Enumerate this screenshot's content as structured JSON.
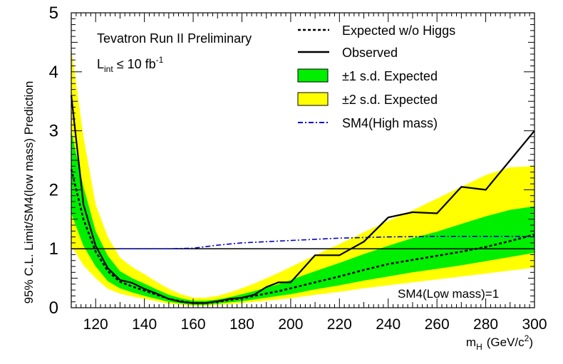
{
  "chart_data": {
    "type": "line",
    "title_lines": [
      "Tevatron Run II Preliminary"
    ],
    "luminosity": {
      "base": "L",
      "sub": "int",
      "relation": "≤ 10 fb",
      "sup": "-1"
    },
    "xlabel": {
      "base": "m",
      "sub": "H",
      "unit_pre": "(GeV/c",
      "unit_sup": "2",
      "unit_post": ")"
    },
    "ylabel": "95% C.L. Limit/SM4(low mass) Prediction",
    "xlim": [
      110,
      300
    ],
    "ylim": [
      0,
      5
    ],
    "x_ticks": [
      120,
      140,
      160,
      180,
      200,
      220,
      240,
      260,
      280,
      300
    ],
    "y_ticks": [
      0,
      1,
      2,
      3,
      4,
      5
    ],
    "reference_line": {
      "y": 1,
      "label": "SM4(Low mass)=1"
    },
    "x": [
      110,
      115,
      120,
      125,
      130,
      135,
      140,
      145,
      150,
      155,
      160,
      165,
      170,
      175,
      180,
      185,
      190,
      195,
      200,
      210,
      220,
      230,
      240,
      250,
      260,
      270,
      280,
      290,
      300
    ],
    "series": [
      {
        "name": "Expected w/o Higgs",
        "style": "dashed",
        "values": [
          2.35,
          1.5,
          0.95,
          0.62,
          0.44,
          0.36,
          0.29,
          0.22,
          0.15,
          0.11,
          0.08,
          0.08,
          0.1,
          0.13,
          0.16,
          0.2,
          0.24,
          0.28,
          0.33,
          0.43,
          0.53,
          0.64,
          0.74,
          0.81,
          0.88,
          0.95,
          1.03,
          1.13,
          1.24
        ]
      },
      {
        "name": "Observed",
        "style": "solid",
        "values": [
          3.6,
          1.75,
          1.05,
          0.67,
          0.47,
          0.42,
          0.32,
          0.24,
          0.15,
          0.1,
          0.08,
          0.08,
          0.11,
          0.15,
          0.17,
          0.22,
          0.35,
          0.43,
          0.43,
          0.89,
          0.89,
          1.12,
          1.53,
          1.62,
          1.6,
          2.05,
          2.0,
          2.5,
          3.0
        ]
      },
      {
        "name": "±1 s.d. Expected",
        "style": "band",
        "color": "#00ee00",
        "low": [
          1.6,
          1.05,
          0.7,
          0.45,
          0.33,
          0.26,
          0.2,
          0.15,
          0.1,
          0.07,
          0.05,
          0.05,
          0.07,
          0.09,
          0.11,
          0.14,
          0.17,
          0.2,
          0.23,
          0.31,
          0.38,
          0.46,
          0.53,
          0.6,
          0.66,
          0.72,
          0.79,
          0.86,
          0.93
        ],
        "high": [
          3.0,
          2.05,
          1.3,
          0.88,
          0.62,
          0.5,
          0.41,
          0.31,
          0.22,
          0.16,
          0.12,
          0.12,
          0.14,
          0.18,
          0.23,
          0.28,
          0.34,
          0.4,
          0.47,
          0.62,
          0.76,
          0.91,
          1.05,
          1.18,
          1.29,
          1.42,
          1.55,
          1.66,
          1.72
        ]
      },
      {
        "name": "±2 s.d. Expected",
        "style": "band",
        "color": "#ffff00",
        "low": [
          1.05,
          0.72,
          0.5,
          0.32,
          0.24,
          0.19,
          0.15,
          0.11,
          0.07,
          0.05,
          0.035,
          0.035,
          0.05,
          0.06,
          0.08,
          0.1,
          0.12,
          0.14,
          0.16,
          0.22,
          0.27,
          0.33,
          0.38,
          0.43,
          0.48,
          0.53,
          0.58,
          0.63,
          0.68
        ],
        "high": [
          4.4,
          2.9,
          1.75,
          1.2,
          0.85,
          0.69,
          0.57,
          0.44,
          0.32,
          0.23,
          0.17,
          0.17,
          0.2,
          0.26,
          0.33,
          0.41,
          0.5,
          0.59,
          0.69,
          0.89,
          1.08,
          1.28,
          1.47,
          1.65,
          1.85,
          2.05,
          2.25,
          2.38,
          2.4
        ]
      },
      {
        "name": "SM4(High mass)",
        "style": "dashdot",
        "color": "#0000cc",
        "x": [
          130,
          140,
          150,
          160,
          170,
          180,
          190,
          200,
          220,
          240,
          260,
          280,
          300
        ],
        "values": [
          1.0,
          1.0,
          1.0,
          1.01,
          1.06,
          1.1,
          1.12,
          1.14,
          1.18,
          1.2,
          1.21,
          1.21,
          1.21
        ]
      }
    ],
    "legend_position": "top-right",
    "grid": false
  }
}
